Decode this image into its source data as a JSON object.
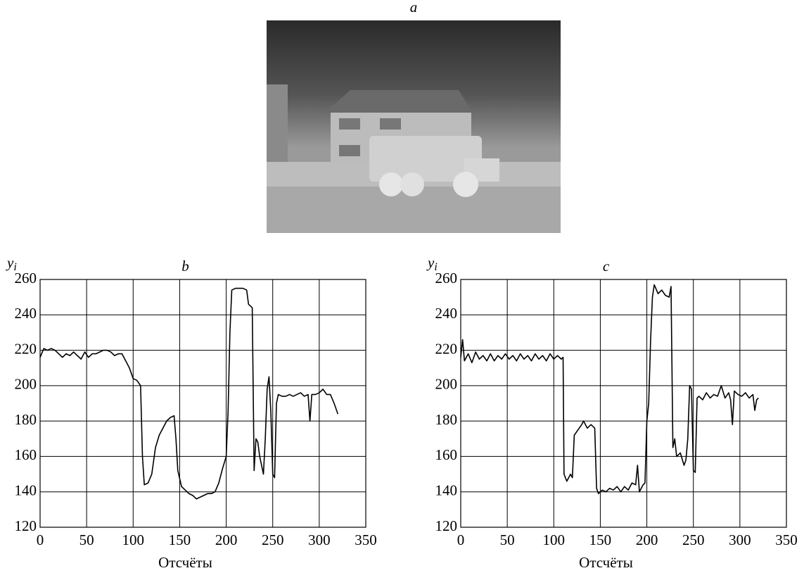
{
  "image_panel": {
    "label": "a"
  },
  "chart_data": [
    {
      "type": "line",
      "title": "b",
      "ylabel": {
        "base": "y",
        "sub": "i"
      },
      "xlabel": "Отсчёты",
      "xlim": [
        0,
        350
      ],
      "xticks": [
        0,
        50,
        100,
        150,
        200,
        250,
        300,
        350
      ],
      "ylim": [
        120,
        260
      ],
      "yticks": [
        120,
        140,
        160,
        180,
        200,
        220,
        240,
        260
      ],
      "grid": true,
      "color": "#000000",
      "x": [
        0,
        4,
        8,
        12,
        16,
        20,
        24,
        28,
        32,
        36,
        40,
        44,
        48,
        52,
        56,
        60,
        64,
        68,
        72,
        76,
        80,
        84,
        88,
        92,
        96,
        100,
        104,
        108,
        110,
        112,
        116,
        120,
        124,
        128,
        132,
        136,
        140,
        144,
        146,
        148,
        152,
        156,
        160,
        164,
        168,
        172,
        176,
        180,
        184,
        188,
        192,
        196,
        200,
        202,
        204,
        206,
        210,
        214,
        218,
        222,
        224,
        228,
        230,
        232,
        234,
        236,
        240,
        242,
        244,
        246,
        248,
        250,
        252,
        254,
        256,
        260,
        264,
        268,
        272,
        276,
        280,
        284,
        288,
        290,
        292,
        296,
        300,
        304,
        308,
        312,
        316,
        320
      ],
      "values": [
        216,
        221,
        220,
        221,
        220,
        218,
        216,
        218,
        217,
        219,
        217,
        215,
        219,
        216,
        218,
        218,
        219,
        220,
        220,
        219,
        217,
        218,
        218,
        214,
        210,
        204,
        203,
        200,
        160,
        144,
        145,
        150,
        165,
        172,
        176,
        180,
        182,
        183,
        170,
        152,
        143,
        141,
        139,
        138,
        136,
        137,
        138,
        139,
        139,
        140,
        145,
        153,
        160,
        185,
        230,
        254,
        255,
        255,
        255,
        254,
        246,
        244,
        152,
        170,
        168,
        160,
        150,
        170,
        198,
        205,
        185,
        150,
        148,
        190,
        195,
        194,
        194,
        195,
        194,
        195,
        196,
        194,
        195,
        180,
        195,
        195,
        196,
        198,
        195,
        195,
        190,
        184
      ]
    },
    {
      "type": "line",
      "title": "c",
      "ylabel": {
        "base": "y",
        "sub": "i"
      },
      "xlabel": "Отсчёты",
      "xlim": [
        0,
        350
      ],
      "xticks": [
        0,
        50,
        100,
        150,
        200,
        250,
        300,
        350
      ],
      "ylim": [
        120,
        260
      ],
      "yticks": [
        120,
        140,
        160,
        180,
        200,
        220,
        240,
        260
      ],
      "grid": true,
      "color": "#000000",
      "x": [
        0,
        2,
        4,
        8,
        12,
        16,
        20,
        24,
        28,
        32,
        36,
        40,
        44,
        48,
        52,
        56,
        60,
        64,
        68,
        72,
        76,
        80,
        84,
        88,
        92,
        96,
        100,
        104,
        108,
        110,
        111,
        114,
        118,
        120,
        122,
        126,
        130,
        132,
        136,
        140,
        144,
        146,
        148,
        152,
        156,
        160,
        164,
        168,
        172,
        176,
        180,
        184,
        188,
        190,
        192,
        196,
        198,
        200,
        202,
        204,
        206,
        208,
        212,
        216,
        220,
        224,
        226,
        228,
        230,
        232,
        236,
        240,
        242,
        244,
        246,
        248,
        250,
        252,
        254,
        256,
        260,
        264,
        268,
        272,
        276,
        280,
        284,
        288,
        290,
        292,
        294,
        298,
        302,
        306,
        310,
        314,
        316,
        318,
        320
      ],
      "values": [
        216,
        226,
        214,
        218,
        213,
        219,
        215,
        217,
        214,
        218,
        214,
        217,
        215,
        218,
        215,
        217,
        214,
        218,
        215,
        217,
        214,
        218,
        215,
        217,
        214,
        218,
        215,
        217,
        215,
        216,
        150,
        146,
        150,
        148,
        172,
        175,
        178,
        180,
        176,
        178,
        176,
        142,
        139,
        141,
        140,
        142,
        141,
        143,
        140,
        143,
        141,
        145,
        144,
        155,
        140,
        144,
        145,
        180,
        190,
        225,
        250,
        257,
        252,
        254,
        251,
        250,
        256,
        165,
        170,
        160,
        162,
        155,
        158,
        170,
        200,
        198,
        152,
        151,
        193,
        194,
        192,
        196,
        193,
        195,
        194,
        200,
        193,
        196,
        192,
        178,
        197,
        195,
        194,
        196,
        193,
        195,
        186,
        192,
        193
      ]
    }
  ]
}
